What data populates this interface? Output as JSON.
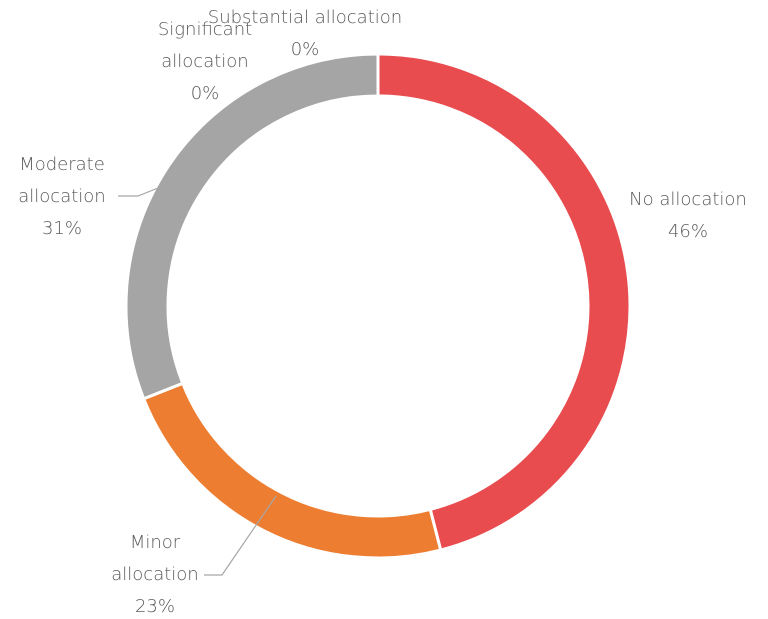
{
  "chart_data": {
    "type": "donut",
    "categories": [
      "No allocation",
      "Minor allocation",
      "Moderate allocation",
      "Significant allocation",
      "Substantial allocation"
    ],
    "values": [
      46,
      23,
      31,
      0,
      0
    ],
    "value_labels": [
      "46%",
      "23%",
      "31%",
      "0%",
      "0%"
    ],
    "colors": [
      "#e84c4f",
      "#ed7d31",
      "#a5a5a5",
      "#ffc000",
      "#5b9bd5"
    ]
  }
}
